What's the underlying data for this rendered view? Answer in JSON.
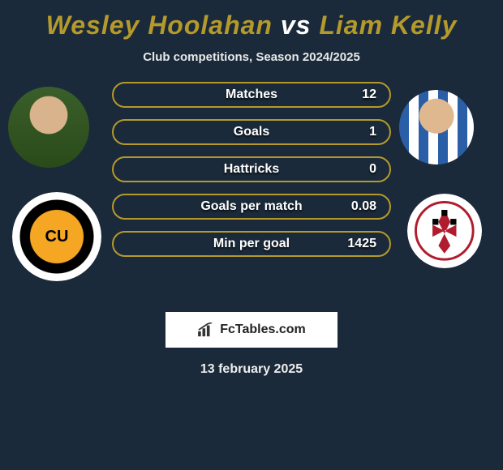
{
  "title": {
    "player1": "Wesley Hoolahan",
    "vs": "vs",
    "player2": "Liam Kelly",
    "player1_color": "#b59a2b",
    "vs_color": "#ffffff",
    "player2_color": "#b59a2b"
  },
  "subtitle": "Club competitions, Season 2024/2025",
  "accent_color": "#b59a2b",
  "background_color": "#1a2a3a",
  "stats": [
    {
      "label": "Matches",
      "value": "12",
      "fill_pct": 0
    },
    {
      "label": "Goals",
      "value": "1",
      "fill_pct": 0
    },
    {
      "label": "Hattricks",
      "value": "0",
      "fill_pct": 0
    },
    {
      "label": "Goals per match",
      "value": "0.08",
      "fill_pct": 0
    },
    {
      "label": "Min per goal",
      "value": "1425",
      "fill_pct": 0
    }
  ],
  "left_club_text": "CU",
  "watermark": "FcTables.com",
  "date": "13 february 2025",
  "avatars": {
    "left_player_alt": "Wesley Hoolahan headshot",
    "right_player_alt": "Liam Kelly headshot",
    "left_club_alt": "Cambridge United crest",
    "right_club_alt": "Rotherham United crest"
  }
}
